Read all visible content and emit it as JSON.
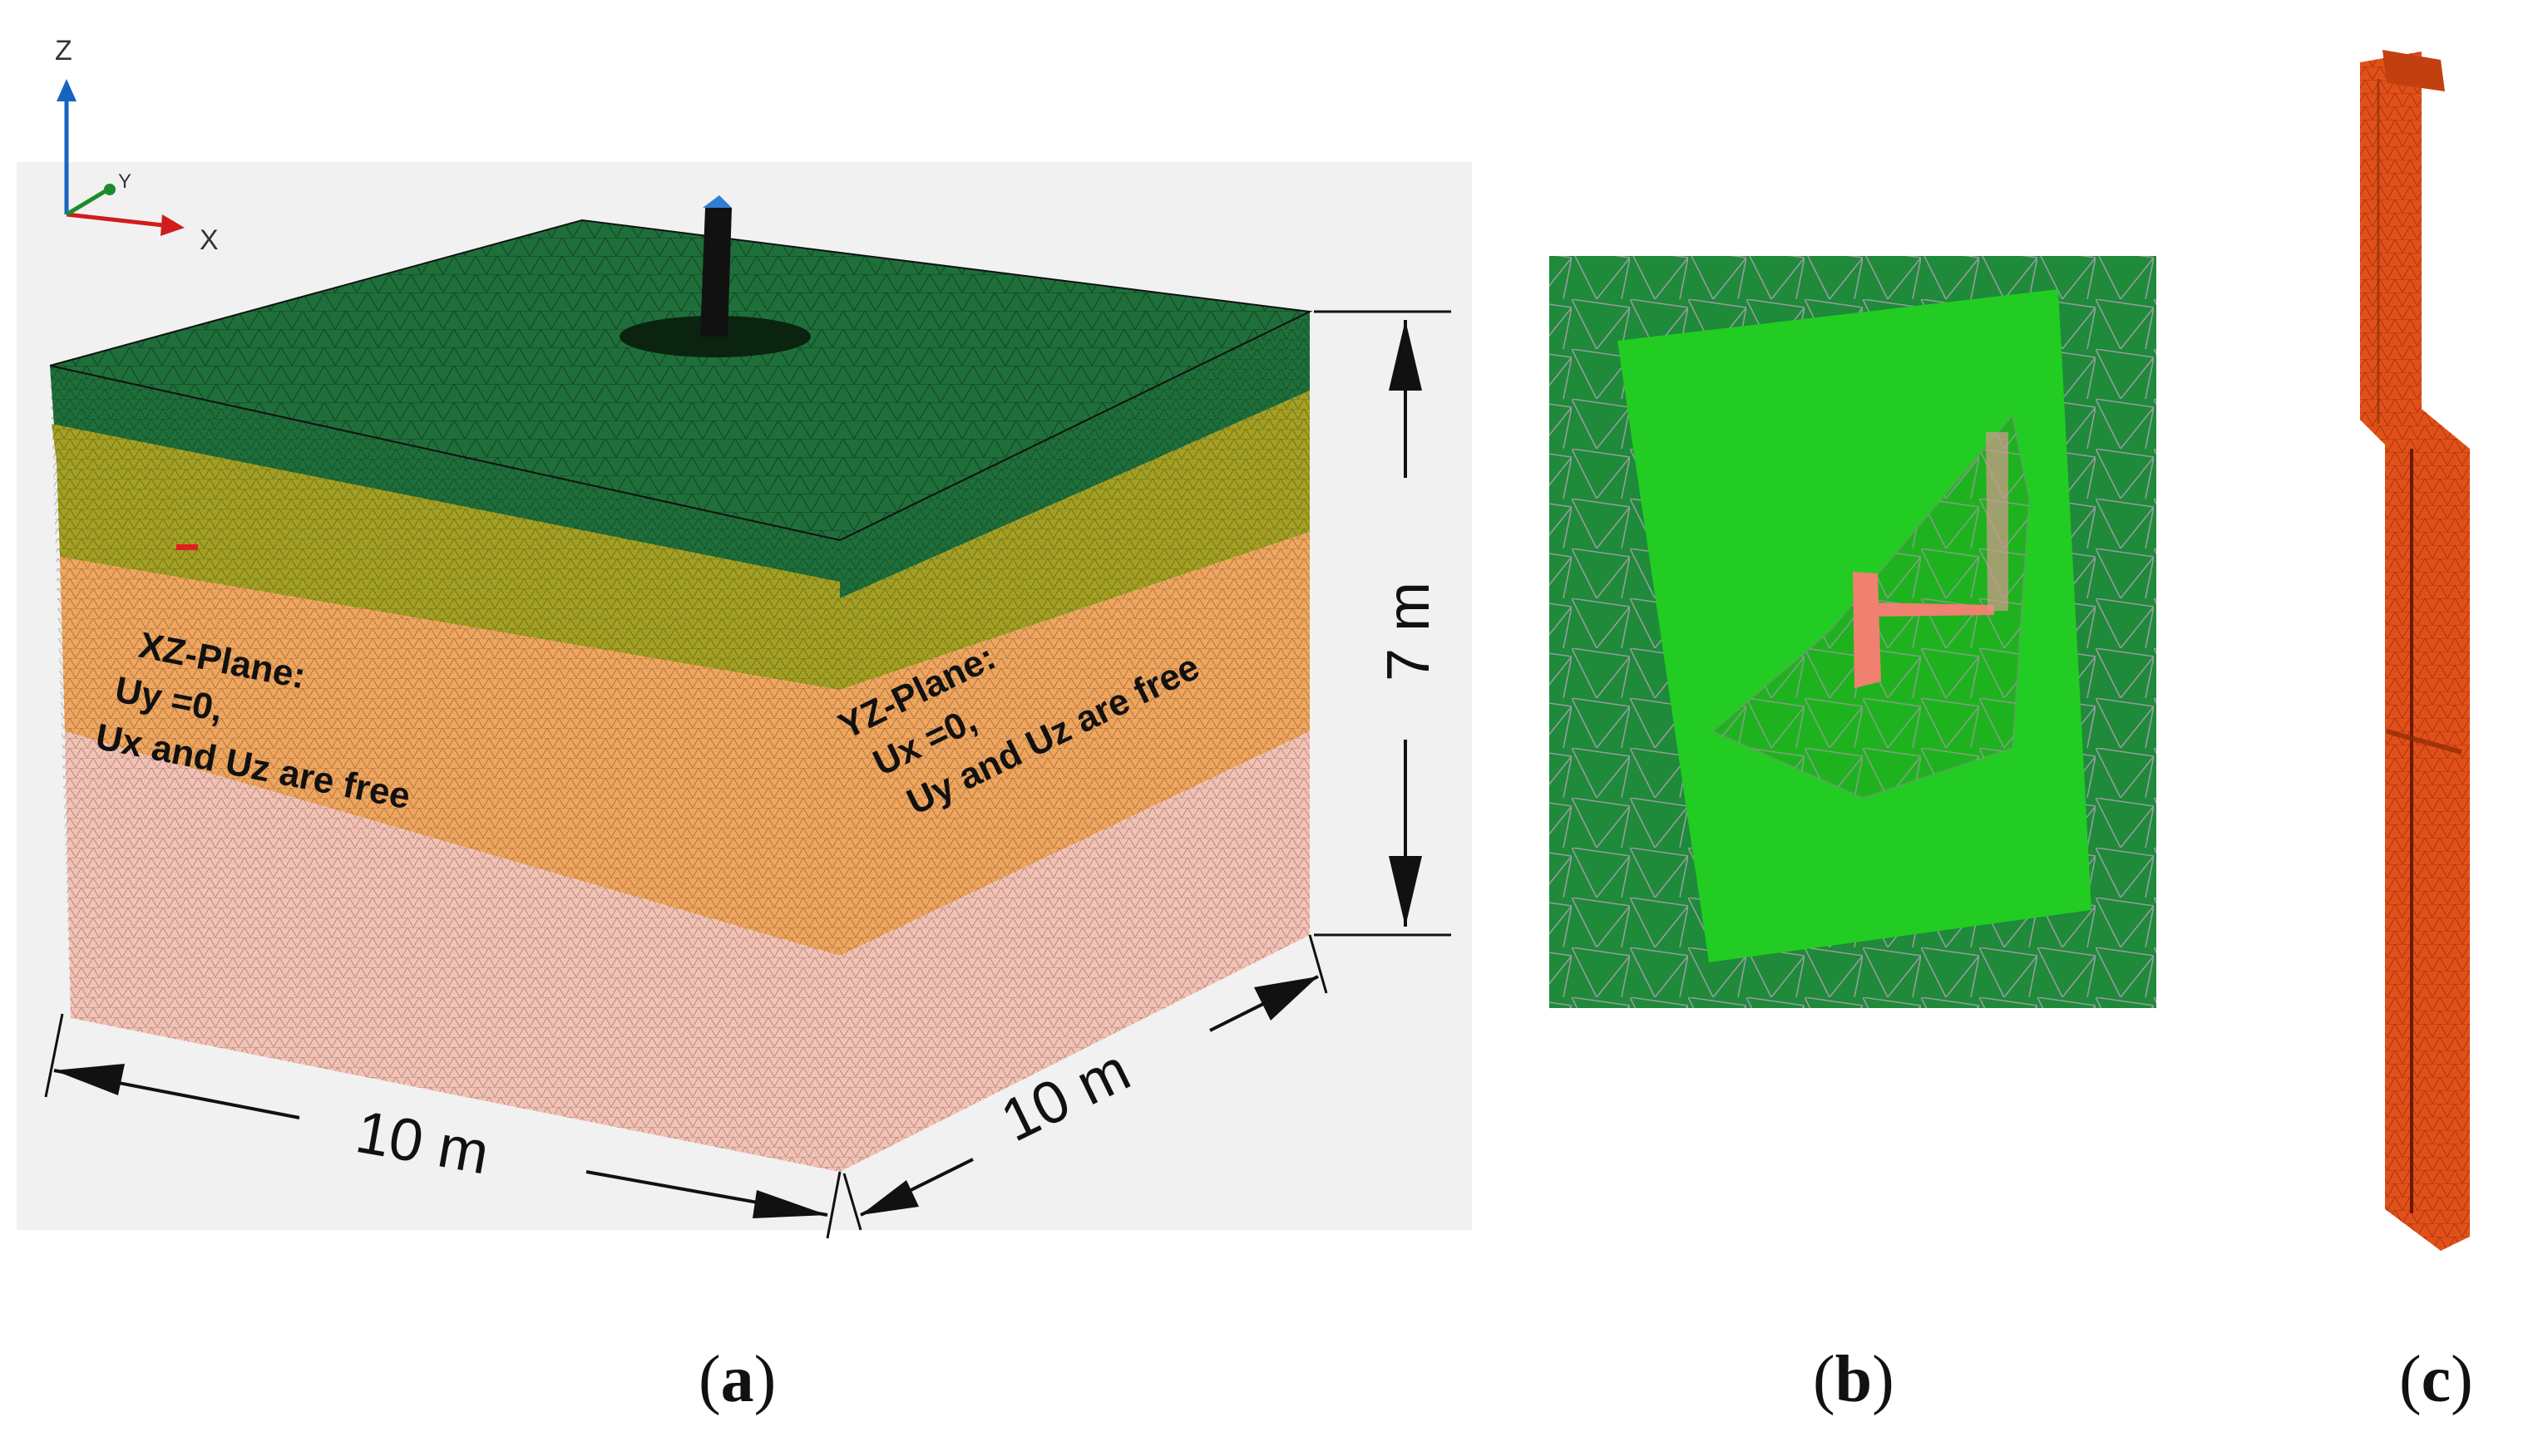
{
  "panels": {
    "a": {
      "label_open": "(",
      "label_letter": "a",
      "label_close": ")"
    },
    "b": {
      "label_open": "(",
      "label_letter": "b",
      "label_close": ")"
    },
    "c": {
      "label_open": "(",
      "label_letter": "c",
      "label_close": ")"
    }
  },
  "axes": {
    "z": "Z",
    "y": "Y",
    "x": "X"
  },
  "annotations": {
    "xz_title": "XZ-Plane:",
    "xz_line1": "Uy =0,",
    "xz_line2": "Ux and Uz are free",
    "yz_title": "YZ-Plane:",
    "yz_line1": "Ux =0,",
    "yz_line2": "Uy and Uz are free"
  },
  "dimensions": {
    "height": "7 m",
    "width_x": "10 m",
    "width_y": "10 m"
  },
  "colors": {
    "top_layer": "#1f6f3a",
    "olive_layer": "#a3a024",
    "orange_layer": "#f0a65e",
    "pink_layer": "#f4c2b5",
    "mesh_green": "#22cc22",
    "mesh_bg": "#1e8a3a",
    "pile": "#e2501a"
  }
}
